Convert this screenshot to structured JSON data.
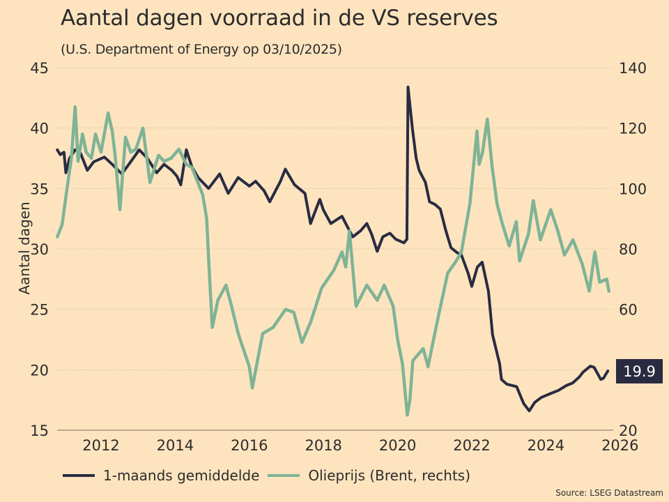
{
  "header": {
    "title": "Aantal dagen voorraad in de VS reserves",
    "subtitle": "(U.S. Department of Energy op 03/10/2025)"
  },
  "legend": [
    {
      "label": "1-maands gemiddelde",
      "color": "#292b41"
    },
    {
      "label": "Olieprijs (Brent, rechts)",
      "color": "#7fb396"
    }
  ],
  "source": "Source: LSEG Datastream",
  "last_value_badge": "19.9",
  "chart_data": {
    "type": "line",
    "title": "Aantal dagen voorraad in de VS reserves",
    "subtitle": "(U.S. Department of Energy op 03/10/2025)",
    "xlabel": "",
    "ylabel": "Aantal dagen",
    "ylabel_right": "",
    "xlim": [
      2010.82,
      2025.85
    ],
    "ylim": [
      15,
      45
    ],
    "ylim_right": [
      20,
      140
    ],
    "x_ticks": [
      2012,
      2014,
      2016,
      2018,
      2020,
      2022,
      2024,
      2026
    ],
    "y_ticks": [
      15,
      20,
      25,
      30,
      35,
      40,
      45
    ],
    "y_ticks_right": [
      20,
      40,
      60,
      80,
      100,
      120,
      140
    ],
    "grid": "horizontal dotted",
    "legend_position": "bottom",
    "annotations": [
      {
        "text": "19.9",
        "series": "1-maands gemiddelde",
        "position": "right-axis badge"
      }
    ],
    "series": [
      {
        "name": "1-maands gemiddelde",
        "axis": "left",
        "color": "#292b41",
        "points": [
          [
            2010.82,
            38.2
          ],
          [
            2010.9,
            37.8
          ],
          [
            2011.0,
            38.0
          ],
          [
            2011.05,
            36.3
          ],
          [
            2011.15,
            37.5
          ],
          [
            2011.3,
            38.2
          ],
          [
            2011.45,
            37.9
          ],
          [
            2011.63,
            36.5
          ],
          [
            2011.8,
            37.2
          ],
          [
            2012.09,
            37.6
          ],
          [
            2012.3,
            37.0
          ],
          [
            2012.56,
            36.2
          ],
          [
            2012.75,
            37.0
          ],
          [
            2013.03,
            38.2
          ],
          [
            2013.25,
            37.5
          ],
          [
            2013.5,
            36.3
          ],
          [
            2013.7,
            37.0
          ],
          [
            2013.91,
            36.5
          ],
          [
            2014.05,
            36.0
          ],
          [
            2014.15,
            35.3
          ],
          [
            2014.3,
            38.2
          ],
          [
            2014.45,
            36.8
          ],
          [
            2014.62,
            35.9
          ],
          [
            2014.9,
            35.0
          ],
          [
            2015.2,
            36.2
          ],
          [
            2015.43,
            34.6
          ],
          [
            2015.7,
            35.9
          ],
          [
            2016.0,
            35.2
          ],
          [
            2016.17,
            35.6
          ],
          [
            2016.4,
            34.8
          ],
          [
            2016.55,
            33.9
          ],
          [
            2016.84,
            35.6
          ],
          [
            2016.97,
            36.6
          ],
          [
            2017.22,
            35.3
          ],
          [
            2017.5,
            34.6
          ],
          [
            2017.65,
            32.1
          ],
          [
            2017.9,
            34.1
          ],
          [
            2018.0,
            33.2
          ],
          [
            2018.2,
            32.1
          ],
          [
            2018.5,
            32.7
          ],
          [
            2018.65,
            31.8
          ],
          [
            2018.79,
            31.0
          ],
          [
            2019.0,
            31.5
          ],
          [
            2019.17,
            32.1
          ],
          [
            2019.3,
            31.2
          ],
          [
            2019.45,
            29.8
          ],
          [
            2019.6,
            31.0
          ],
          [
            2019.79,
            31.3
          ],
          [
            2019.95,
            30.8
          ],
          [
            2020.17,
            30.5
          ],
          [
            2020.25,
            30.8
          ],
          [
            2020.28,
            43.4
          ],
          [
            2020.4,
            39.9
          ],
          [
            2020.5,
            37.5
          ],
          [
            2020.58,
            36.5
          ],
          [
            2020.75,
            35.5
          ],
          [
            2020.86,
            33.9
          ],
          [
            2021.0,
            33.7
          ],
          [
            2021.15,
            33.3
          ],
          [
            2021.3,
            31.5
          ],
          [
            2021.44,
            30.1
          ],
          [
            2021.6,
            29.7
          ],
          [
            2021.72,
            29.5
          ],
          [
            2021.9,
            28.0
          ],
          [
            2022.0,
            26.9
          ],
          [
            2022.15,
            28.5
          ],
          [
            2022.28,
            28.9
          ],
          [
            2022.45,
            26.5
          ],
          [
            2022.56,
            22.9
          ],
          [
            2022.75,
            20.5
          ],
          [
            2022.8,
            19.2
          ],
          [
            2022.95,
            18.8
          ],
          [
            2023.21,
            18.6
          ],
          [
            2023.4,
            17.2
          ],
          [
            2023.55,
            16.6
          ],
          [
            2023.7,
            17.3
          ],
          [
            2023.87,
            17.7
          ],
          [
            2024.1,
            18.0
          ],
          [
            2024.34,
            18.3
          ],
          [
            2024.55,
            18.7
          ],
          [
            2024.72,
            18.9
          ],
          [
            2024.9,
            19.4
          ],
          [
            2025.0,
            19.8
          ],
          [
            2025.2,
            20.3
          ],
          [
            2025.3,
            20.2
          ],
          [
            2025.48,
            19.2
          ],
          [
            2025.55,
            19.3
          ],
          [
            2025.67,
            19.9
          ]
        ]
      },
      {
        "name": "Olieprijs (Brent, rechts)",
        "axis": "right",
        "color": "#7fb396",
        "points": [
          [
            2010.82,
            84
          ],
          [
            2010.95,
            88
          ],
          [
            2011.06,
            98
          ],
          [
            2011.2,
            110
          ],
          [
            2011.3,
            127
          ],
          [
            2011.38,
            109
          ],
          [
            2011.5,
            118
          ],
          [
            2011.6,
            112
          ],
          [
            2011.74,
            110
          ],
          [
            2011.85,
            118
          ],
          [
            2012.0,
            112
          ],
          [
            2012.19,
            125
          ],
          [
            2012.3,
            119
          ],
          [
            2012.38,
            111
          ],
          [
            2012.51,
            93
          ],
          [
            2012.66,
            117
          ],
          [
            2012.8,
            112
          ],
          [
            2012.94,
            113
          ],
          [
            2013.13,
            120
          ],
          [
            2013.32,
            102
          ],
          [
            2013.55,
            111
          ],
          [
            2013.7,
            109
          ],
          [
            2013.89,
            110
          ],
          [
            2014.1,
            113
          ],
          [
            2014.3,
            108
          ],
          [
            2014.45,
            107
          ],
          [
            2014.74,
            98
          ],
          [
            2014.85,
            90
          ],
          [
            2014.9,
            77
          ],
          [
            2015.0,
            54
          ],
          [
            2015.15,
            63
          ],
          [
            2015.37,
            68
          ],
          [
            2015.52,
            61
          ],
          [
            2015.7,
            52
          ],
          [
            2016.0,
            41
          ],
          [
            2016.08,
            34
          ],
          [
            2016.25,
            45
          ],
          [
            2016.36,
            52
          ],
          [
            2016.64,
            54
          ],
          [
            2016.98,
            60
          ],
          [
            2017.2,
            59
          ],
          [
            2017.42,
            49
          ],
          [
            2017.66,
            56
          ],
          [
            2017.95,
            67
          ],
          [
            2018.28,
            73
          ],
          [
            2018.5,
            79
          ],
          [
            2018.6,
            74
          ],
          [
            2018.7,
            86
          ],
          [
            2018.88,
            61
          ],
          [
            2019.17,
            68
          ],
          [
            2019.45,
            63
          ],
          [
            2019.64,
            68
          ],
          [
            2019.88,
            61
          ],
          [
            2020.0,
            50
          ],
          [
            2020.13,
            42
          ],
          [
            2020.26,
            25
          ],
          [
            2020.33,
            30
          ],
          [
            2020.41,
            43
          ],
          [
            2020.69,
            47
          ],
          [
            2020.82,
            41
          ],
          [
            2021.07,
            56
          ],
          [
            2021.35,
            72
          ],
          [
            2021.58,
            76
          ],
          [
            2021.72,
            79
          ],
          [
            2021.95,
            95
          ],
          [
            2022.14,
            119
          ],
          [
            2022.2,
            108
          ],
          [
            2022.29,
            112
          ],
          [
            2022.42,
            123
          ],
          [
            2022.55,
            107
          ],
          [
            2022.68,
            95
          ],
          [
            2022.83,
            88
          ],
          [
            2023.01,
            81
          ],
          [
            2023.2,
            89
          ],
          [
            2023.29,
            76
          ],
          [
            2023.53,
            85
          ],
          [
            2023.66,
            96
          ],
          [
            2023.85,
            83
          ],
          [
            2024.13,
            93
          ],
          [
            2024.32,
            86
          ],
          [
            2024.5,
            78
          ],
          [
            2024.73,
            83
          ],
          [
            2024.98,
            75
          ],
          [
            2025.17,
            66
          ],
          [
            2025.32,
            79
          ],
          [
            2025.45,
            69
          ],
          [
            2025.64,
            70
          ],
          [
            2025.7,
            66
          ]
        ]
      }
    ]
  }
}
